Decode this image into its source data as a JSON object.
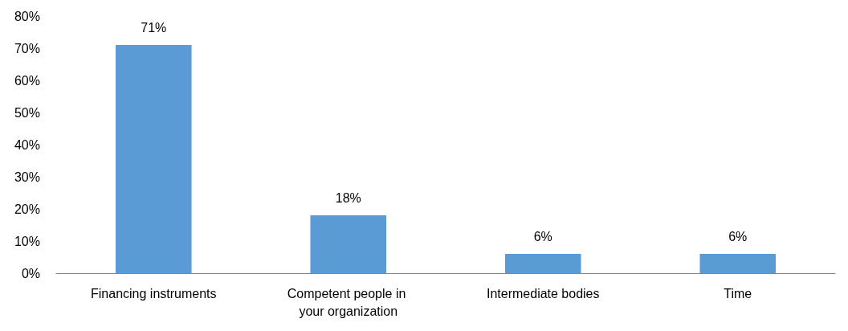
{
  "chart_data": {
    "type": "bar",
    "categories": [
      "Financing instruments",
      "Competent people in your organization",
      "Intermediate bodies",
      "Time"
    ],
    "values": [
      71,
      18,
      6,
      6
    ],
    "value_labels": [
      "71%",
      "18%",
      "6%",
      "6%"
    ],
    "color": "#5b9bd5",
    "ylim": [
      0,
      80
    ],
    "yticks": [
      {
        "value": 0,
        "label": "0%"
      },
      {
        "value": 10,
        "label": "10%"
      },
      {
        "value": 20,
        "label": "20%"
      },
      {
        "value": 30,
        "label": "30%"
      },
      {
        "value": 40,
        "label": "40%"
      },
      {
        "value": 50,
        "label": "50%"
      },
      {
        "value": 60,
        "label": "60%"
      },
      {
        "value": 70,
        "label": "70%"
      },
      {
        "value": 80,
        "label": "80%"
      }
    ]
  }
}
